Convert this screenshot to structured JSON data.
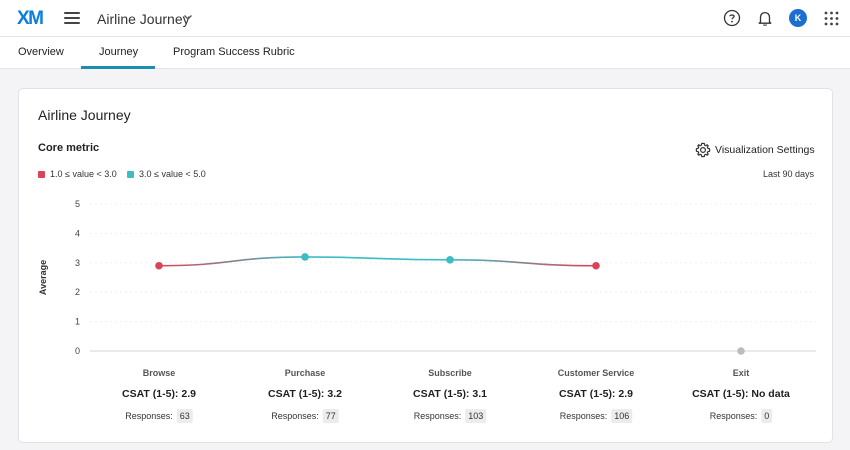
{
  "header": {
    "logo": "XM",
    "project_title": "Airline Journey",
    "avatar_initial": "K"
  },
  "tabs": [
    {
      "label": "Overview"
    },
    {
      "label": "Journey"
    },
    {
      "label": "Program Success Rubric"
    }
  ],
  "active_tab": "Journey",
  "card": {
    "title": "Airline Journey",
    "core_metric_label": "Core metric",
    "viz_settings_label": "Visualization Settings",
    "date_range": "Last 90 days",
    "legend": [
      {
        "label": "1.0 ≤ value < 3.0",
        "color": "#d94459"
      },
      {
        "label": "3.0 ≤ value < 5.0",
        "color": "#3cbcc4"
      }
    ]
  },
  "chart_data": {
    "type": "line",
    "ylabel": "Average",
    "ylim": [
      0,
      5
    ],
    "yticks": [
      "0",
      "1",
      "2",
      "3",
      "4",
      "5"
    ],
    "no_data_color": "#bdbdbd",
    "stages": [
      {
        "name": "Browse",
        "value": 2.9,
        "metric": "CSAT (1-5): 2.9",
        "responses_label": "Responses:",
        "responses": "63"
      },
      {
        "name": "Purchase",
        "value": 3.2,
        "metric": "CSAT (1-5): 3.2",
        "responses_label": "Responses:",
        "responses": "77"
      },
      {
        "name": "Subscribe",
        "value": 3.1,
        "metric": "CSAT (1-5): 3.1",
        "responses_label": "Responses:",
        "responses": "103"
      },
      {
        "name": "Customer Service",
        "value": 2.9,
        "metric": "CSAT (1-5): 2.9",
        "responses_label": "Responses:",
        "responses": "106"
      },
      {
        "name": "Exit",
        "value": null,
        "metric": "CSAT (1-5): No data",
        "responses_label": "Responses:",
        "responses": "0"
      }
    ]
  }
}
